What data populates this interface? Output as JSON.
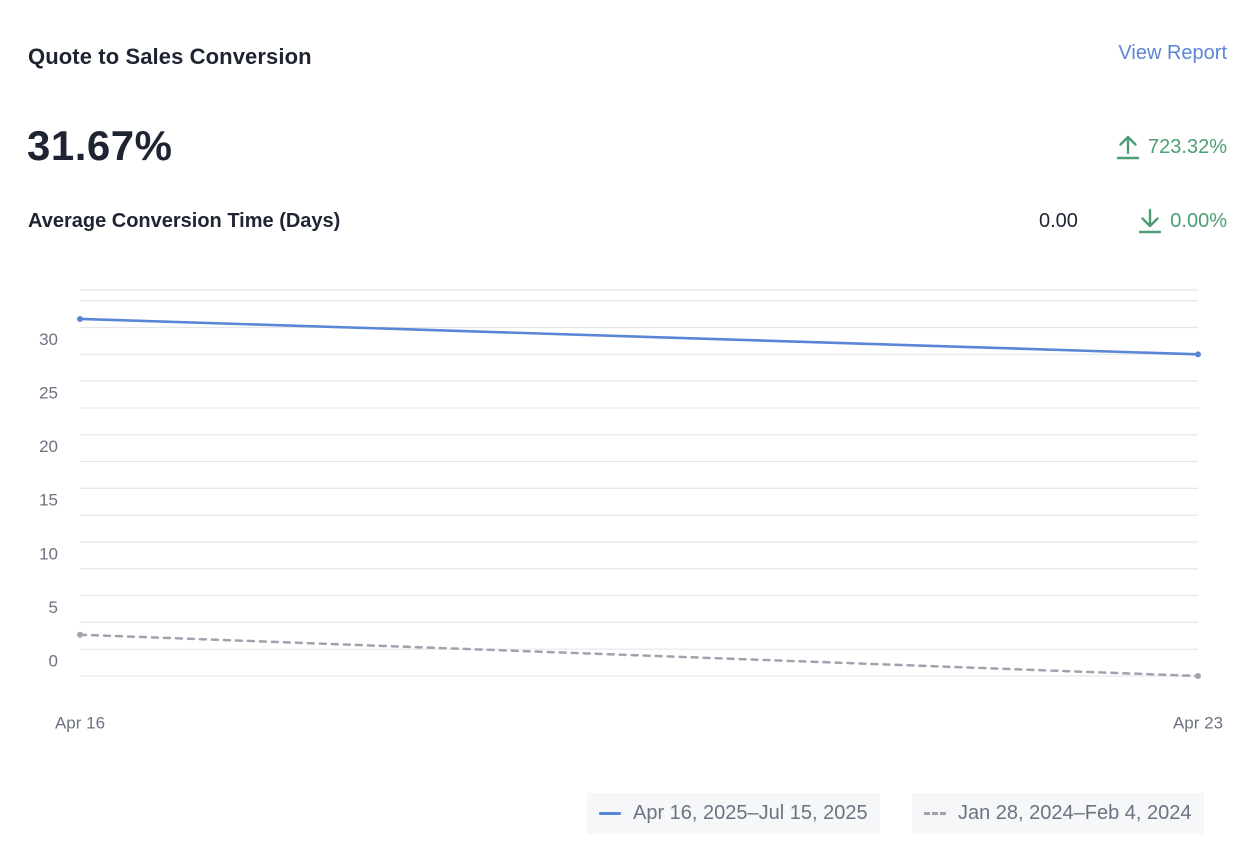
{
  "card": {
    "title": "Quote to Sales Conversion",
    "view_report_label": "View Report",
    "metric_value": "31.67%",
    "metric_change": "723.32%",
    "metric_change_direction": "up",
    "sub_metric_label": "Average Conversion Time (Days)",
    "sub_metric_value": "0.00",
    "sub_metric_change": "0.00%",
    "sub_metric_change_direction": "down",
    "change_color": "#4d9e73",
    "link_color": "#5b86d6"
  },
  "chart_data": {
    "type": "line",
    "title": "",
    "xlabel": "",
    "ylabel": "",
    "x": [
      "Apr 16",
      "Apr 23"
    ],
    "yticks": [
      0,
      5,
      10,
      15,
      20,
      25,
      30
    ],
    "ylim": [
      0,
      36
    ],
    "grid": true,
    "legend_position": "bottom-right",
    "series": [
      {
        "name": "Apr 16, 2025–Jul 15, 2025",
        "values": [
          33.3,
          30.0
        ],
        "color": "#5b86d6",
        "style": "solid"
      },
      {
        "name": "Jan 28, 2024–Feb 4, 2024",
        "values": [
          3.85,
          0
        ],
        "color": "#a1a2ad",
        "style": "dashed"
      }
    ]
  }
}
